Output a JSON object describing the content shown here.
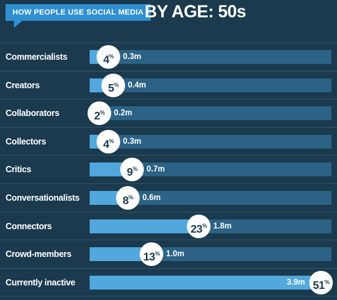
{
  "header": {
    "tag": "HOW PEOPLE USE SOCIAL MEDIA",
    "title_prefix": "BY AGE: ",
    "title_age": "50s"
  },
  "colors": {
    "background": "#1b3a4e",
    "track": "#2b6285",
    "fill": "#52a8dc",
    "tag": "#2f8fd0",
    "bubble": "#ffffff"
  },
  "chart_data": {
    "type": "bar",
    "orientation": "horizontal",
    "title": "HOW PEOPLE USE SOCIAL MEDIA BY AGE: 50s",
    "value_unit": "%",
    "xlim": [
      0,
      51
    ],
    "categories": [
      "Commercialists",
      "Creators",
      "Collaborators",
      "Collectors",
      "Critics",
      "Conversationalists",
      "Connectors",
      "Crowd-members",
      "Currently inactive"
    ],
    "values": [
      4,
      5,
      2,
      4,
      9,
      8,
      23,
      13,
      51
    ],
    "people_labels": [
      "0.3m",
      "0.4m",
      "0.2m",
      "0.3m",
      "0.7m",
      "0.6m",
      "1.8m",
      "1.0m",
      "3.9m"
    ]
  }
}
